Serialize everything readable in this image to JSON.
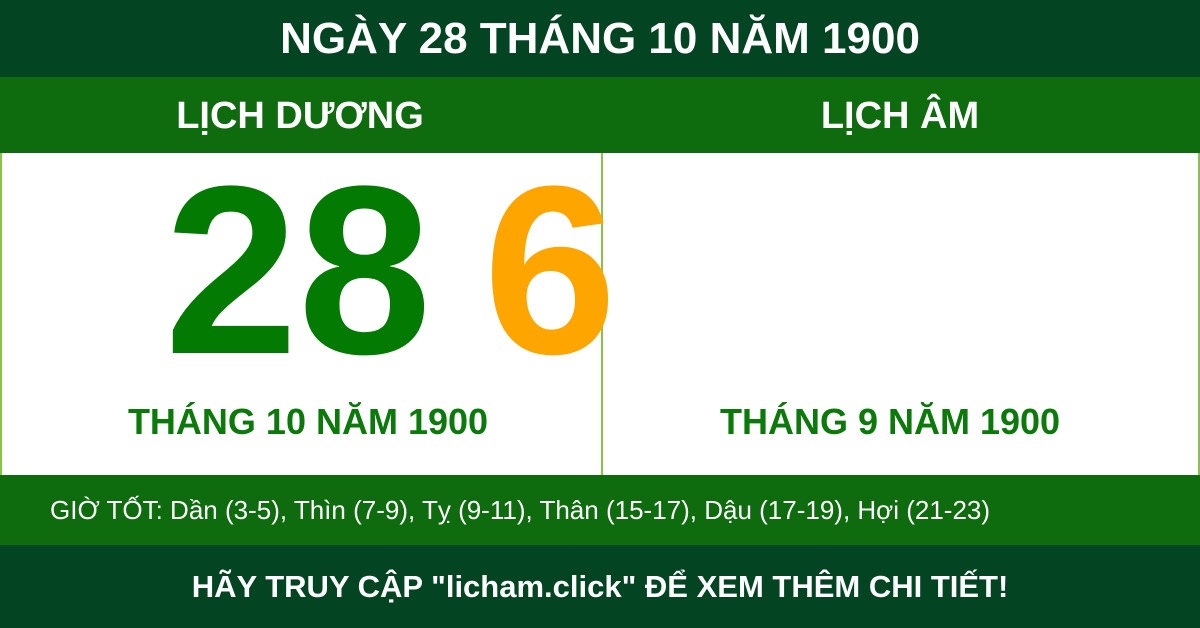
{
  "title": "NGÀY 28 THÁNG 10 NĂM 1900",
  "solar": {
    "heading": "LỊCH DƯƠNG",
    "day": "28",
    "month_year": "THÁNG 10 NĂM 1900",
    "color": "#037b03"
  },
  "lunar": {
    "heading": "LỊCH ÂM",
    "day": "6",
    "month_year": "THÁNG 9 NĂM 1900",
    "color": "#ffa500"
  },
  "good_hours": "GIỜ TỐT: Dần (3-5), Thìn (7-9), Tỵ (9-11), Thân (15-17), Dậu (17-19), Hợi (21-23)",
  "footer": "HÃY TRUY CẬP \"licham.click\" ĐỂ XEM THÊM CHI TIẾT!"
}
